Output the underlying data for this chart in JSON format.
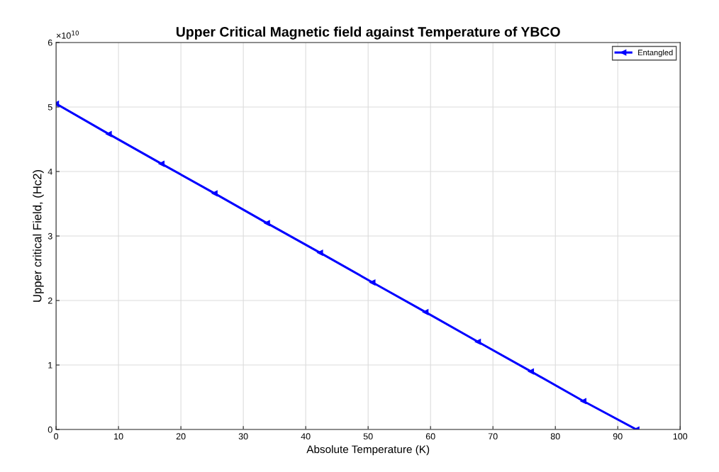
{
  "chart_data": {
    "type": "line",
    "title": "Upper Critical Magnetic field against Temperature of YBCO",
    "xlabel": "Absolute Temperature (K)",
    "ylabel": "Upper critical Field, (Hc2)",
    "x": [
      0,
      8.45,
      16.9,
      25.4,
      33.8,
      42.3,
      50.7,
      59.2,
      67.6,
      76.1,
      84.5,
      93
    ],
    "series": [
      {
        "name": "Entangled",
        "color": "#0000ff",
        "values": [
          5.05,
          4.58,
          4.12,
          3.66,
          3.2,
          2.74,
          2.28,
          1.82,
          1.36,
          0.9,
          0.44,
          0
        ]
      }
    ],
    "xlim": [
      0,
      100
    ],
    "xticks": [
      0,
      10,
      20,
      30,
      40,
      50,
      60,
      70,
      80,
      90,
      100
    ],
    "ylim": [
      0,
      6
    ],
    "yticks": [
      0,
      1,
      2,
      3,
      4,
      5,
      6
    ],
    "annotations": [
      "×10$^{10}$"
    ],
    "grid": true,
    "legend": "top right",
    "marker": "triangle",
    "line_style": "solid"
  }
}
